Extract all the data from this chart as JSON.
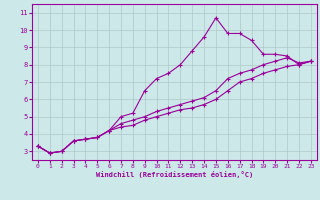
{
  "xlabel": "Windchill (Refroidissement éolien,°C)",
  "bg_color": "#cde8e8",
  "line_color": "#990099",
  "grid_color": "#b0c8c8",
  "xlim": [
    -0.5,
    23.5
  ],
  "ylim": [
    2.5,
    11.5
  ],
  "xticks": [
    0,
    1,
    2,
    3,
    4,
    5,
    6,
    7,
    8,
    9,
    10,
    11,
    12,
    13,
    14,
    15,
    16,
    17,
    18,
    19,
    20,
    21,
    22,
    23
  ],
  "yticks": [
    3,
    4,
    5,
    6,
    7,
    8,
    9,
    10,
    11
  ],
  "curve1_x": [
    0,
    1,
    2,
    3,
    4,
    5,
    6,
    7,
    8,
    9,
    10,
    11,
    12,
    13,
    14,
    15,
    16,
    17,
    18,
    19,
    20,
    21,
    22,
    23
  ],
  "curve1_y": [
    3.3,
    2.9,
    3.0,
    3.6,
    3.7,
    3.8,
    4.2,
    5.0,
    5.2,
    6.5,
    7.2,
    7.5,
    8.0,
    8.8,
    9.6,
    10.7,
    9.8,
    9.8,
    9.4,
    8.6,
    8.6,
    8.5,
    8.0,
    8.2
  ],
  "curve2_x": [
    0,
    1,
    2,
    3,
    4,
    5,
    6,
    7,
    8,
    9,
    10,
    11,
    12,
    13,
    14,
    15,
    16,
    17,
    18,
    19,
    20,
    21,
    22,
    23
  ],
  "curve2_y": [
    3.3,
    2.9,
    3.0,
    3.6,
    3.7,
    3.8,
    4.2,
    4.4,
    4.5,
    4.8,
    5.0,
    5.2,
    5.4,
    5.5,
    5.7,
    6.0,
    6.5,
    7.0,
    7.2,
    7.5,
    7.7,
    7.9,
    8.0,
    8.2
  ],
  "curve3_x": [
    0,
    1,
    2,
    3,
    4,
    5,
    6,
    7,
    8,
    9,
    10,
    11,
    12,
    13,
    14,
    15,
    16,
    17,
    18,
    19,
    20,
    21,
    22,
    23
  ],
  "curve3_y": [
    3.3,
    2.9,
    3.0,
    3.6,
    3.7,
    3.8,
    4.2,
    4.6,
    4.8,
    5.0,
    5.3,
    5.5,
    5.7,
    5.9,
    6.1,
    6.5,
    7.2,
    7.5,
    7.7,
    8.0,
    8.2,
    8.4,
    8.1,
    8.2
  ]
}
